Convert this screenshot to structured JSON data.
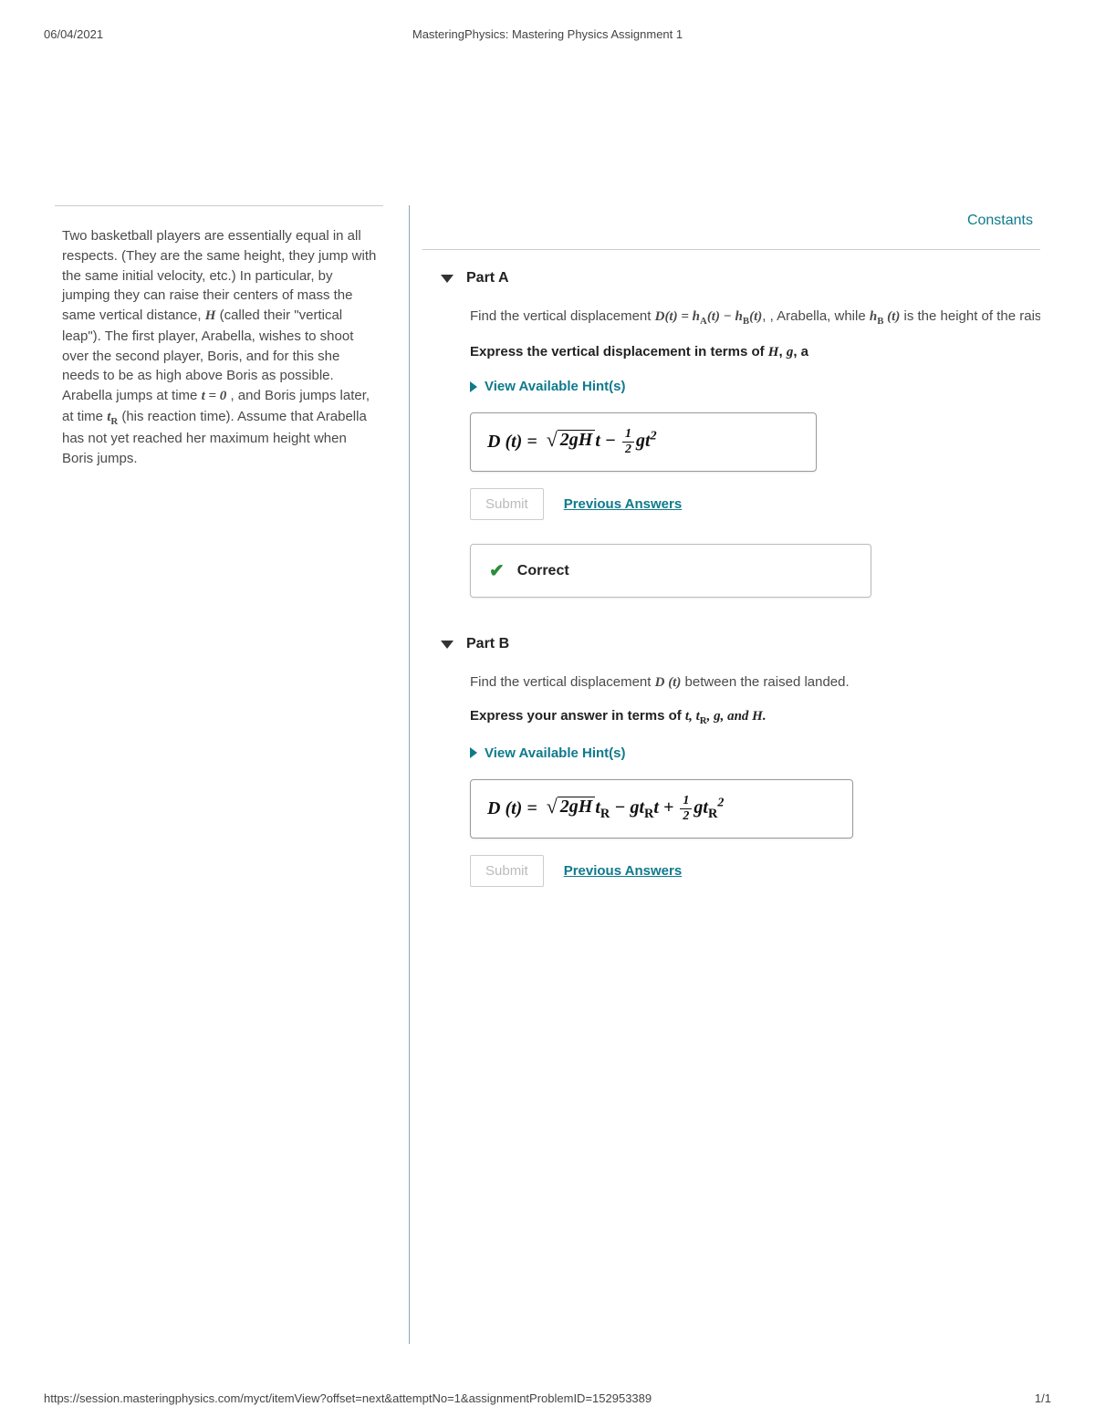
{
  "header": {
    "date": "06/04/2021",
    "title": "MasteringPhysics: Mastering Physics Assignment 1"
  },
  "footer": {
    "url": "https://session.masteringphysics.com/myct/itemView?offset=next&attemptNo=1&assignmentProblemID=152953389",
    "page": "1/1"
  },
  "constants_label": "Constants",
  "problem": {
    "text_pre": "Two basketball players are essentially equal in all respects. (They are the same height, they jump with the same initial velocity, etc.) In particular, by jumping they can raise their centers of mass the same vertical distance, ",
    "H": "H",
    "text_mid1": " (called their \"vertical leap\"). The first player, Arabella, wishes to shoot over the second player, Boris, and for this she needs to be as high above Boris as possible. Arabella jumps at time ",
    "t0": "t = 0",
    "text_mid2": ", and Boris jumps later, at time ",
    "tR": "t",
    "tR_sub": "R",
    "text_end": " (his reaction time). Assume that Arabella has not yet reached her maximum height when Boris jumps."
  },
  "partA": {
    "label": "Part A",
    "desc_pre": "Find the vertical displacement ",
    "desc_eq": "D(t) = h",
    "desc_eq2": "(t) − h",
    "desc_eq3": "(t)",
    "desc_mid": ", Arabella, while ",
    "desc_hB": "h",
    "desc_hB2": " (t)",
    "desc_post": " is the height of the raised hands o",
    "instruct": "Express the vertical displacement in terms of H, g, a",
    "hints": "View Available Hint(s)",
    "answer_lhs": "D (t) =",
    "submit": "Submit",
    "prev": "Previous Answers",
    "correct": "Correct"
  },
  "partB": {
    "label": "Part B",
    "desc_pre": "Find the vertical displacement ",
    "desc_Dt": "D (t)",
    "desc_post": " between the raised landed.",
    "instruct_pre": "Express your answer in terms of ",
    "instruct_vars": "t, t",
    "instruct_vars2": ", g, and H.",
    "hints": "View Available Hint(s)",
    "answer_lhs": "D (t) =",
    "submit": "Submit",
    "prev": "Previous Answers"
  },
  "colors": {
    "link": "#0f7a8c",
    "correct": "#2e8b3d",
    "border": "#999999",
    "text": "#4a4a4a"
  }
}
